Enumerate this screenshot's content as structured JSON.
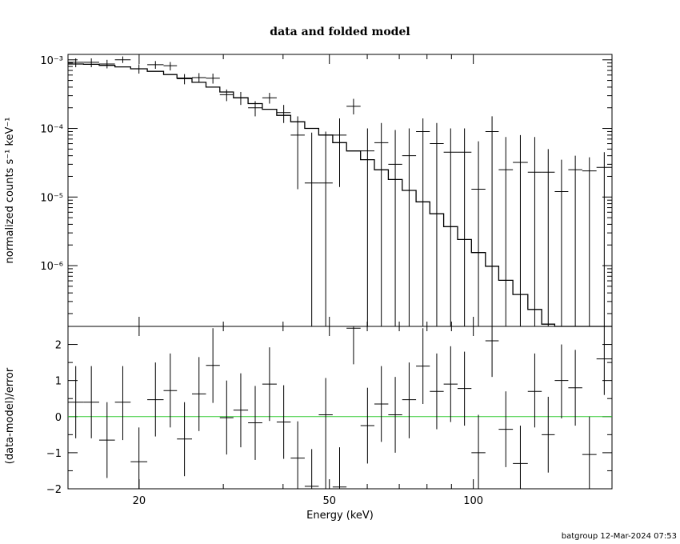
{
  "chart_data": [
    {
      "type": "line",
      "title": "data and folded model",
      "xlabel": "",
      "ylabel": "normalized counts s⁻¹ keV⁻¹",
      "xscale": "log",
      "yscale": "log",
      "xlim": [
        14.2,
        195
      ],
      "ylim": [
        1.3e-07,
        0.0012
      ],
      "ytick_labels": [
        "10⁻³",
        "10⁻⁴",
        "10⁻⁵",
        "10⁻⁶"
      ],
      "ytick_values": [
        0.001,
        0.0001,
        1e-05,
        1e-06
      ],
      "series": [
        {
          "style": "crosses",
          "points": [
            {
              "xlo": 14.2,
              "xhi": 15.3,
              "y": 0.00092,
              "ylo": 0.00078,
              "yhi": 0.00105
            },
            {
              "xlo": 15.3,
              "xhi": 16.5,
              "y": 0.00092,
              "ylo": 0.00078,
              "yhi": 0.00105
            },
            {
              "xlo": 16.5,
              "xhi": 17.8,
              "y": 0.00087,
              "ylo": 0.00075,
              "yhi": 0.001
            },
            {
              "xlo": 17.8,
              "xhi": 19.2,
              "y": 0.001,
              "ylo": 0.0009,
              "yhi": 0.00112
            },
            {
              "xlo": 19.2,
              "xhi": 20.8,
              "y": 0.00074,
              "ylo": 0.00063,
              "yhi": 0.00086
            },
            {
              "xlo": 20.8,
              "xhi": 22.5,
              "y": 0.00085,
              "ylo": 0.00074,
              "yhi": 0.00096
            },
            {
              "xlo": 22.5,
              "xhi": 24.0,
              "y": 0.00082,
              "ylo": 0.0007,
              "yhi": 0.00093
            },
            {
              "xlo": 24.0,
              "xhi": 25.8,
              "y": 0.00053,
              "ylo": 0.00044,
              "yhi": 0.00062
            },
            {
              "xlo": 25.8,
              "xhi": 27.6,
              "y": 0.00055,
              "ylo": 0.00047,
              "yhi": 0.00064
            },
            {
              "xlo": 27.6,
              "xhi": 29.5,
              "y": 0.00054,
              "ylo": 0.00045,
              "yhi": 0.00063
            },
            {
              "xlo": 29.5,
              "xhi": 31.5,
              "y": 0.00031,
              "ylo": 0.00025,
              "yhi": 0.00037
            },
            {
              "xlo": 31.5,
              "xhi": 33.8,
              "y": 0.00028,
              "ylo": 0.00022,
              "yhi": 0.00034
            },
            {
              "xlo": 33.8,
              "xhi": 36.2,
              "y": 0.0002,
              "ylo": 0.00015,
              "yhi": 0.00025
            },
            {
              "xlo": 36.2,
              "xhi": 38.8,
              "y": 0.00028,
              "ylo": 0.00023,
              "yhi": 0.00033
            },
            {
              "xlo": 38.8,
              "xhi": 41.5,
              "y": 0.00017,
              "ylo": 0.00012,
              "yhi": 0.00022
            },
            {
              "xlo": 41.5,
              "xhi": 44.4,
              "y": 8e-05,
              "ylo": 1.3e-05,
              "yhi": 0.00015
            },
            {
              "xlo": 44.4,
              "xhi": 47.5,
              "y": 1.6e-05,
              "ylo": 1.3e-07,
              "yhi": 8.7e-05
            },
            {
              "xlo": 47.5,
              "xhi": 50.8,
              "y": 1.6e-05,
              "ylo": 1.3e-07,
              "yhi": 9e-05
            },
            {
              "xlo": 50.8,
              "xhi": 54.3,
              "y": 8e-05,
              "ylo": 1.4e-05,
              "yhi": 0.00014
            },
            {
              "xlo": 54.3,
              "xhi": 58.1,
              "y": 0.00021,
              "ylo": 0.00016,
              "yhi": 0.00027
            },
            {
              "xlo": 58.1,
              "xhi": 62.1,
              "y": 4.7e-05,
              "ylo": 1.3e-07,
              "yhi": 0.0001
            },
            {
              "xlo": 62.1,
              "xhi": 66.4,
              "y": 6.2e-05,
              "ylo": 1.3e-07,
              "yhi": 0.00012
            },
            {
              "xlo": 66.4,
              "xhi": 71.0,
              "y": 3e-05,
              "ylo": 1.3e-07,
              "yhi": 9.5e-05
            },
            {
              "xlo": 71.0,
              "xhi": 75.9,
              "y": 4e-05,
              "ylo": 1.3e-07,
              "yhi": 0.0001
            },
            {
              "xlo": 75.9,
              "xhi": 81.1,
              "y": 9e-05,
              "ylo": 1.3e-07,
              "yhi": 0.00014
            },
            {
              "xlo": 81.1,
              "xhi": 86.7,
              "y": 6e-05,
              "ylo": 1.3e-07,
              "yhi": 0.00012
            },
            {
              "xlo": 86.7,
              "xhi": 92.7,
              "y": 4.5e-05,
              "ylo": 1.3e-07,
              "yhi": 0.0001
            },
            {
              "xlo": 92.7,
              "xhi": 99.1,
              "y": 4.5e-05,
              "ylo": 1.3e-07,
              "yhi": 0.0001
            },
            {
              "xlo": 99.1,
              "xhi": 106,
              "y": 1.3e-05,
              "ylo": 1.3e-07,
              "yhi": 6.5e-05
            },
            {
              "xlo": 106,
              "xhi": 113,
              "y": 9e-05,
              "ylo": 1.3e-07,
              "yhi": 0.00015
            },
            {
              "xlo": 113,
              "xhi": 121,
              "y": 2.5e-05,
              "ylo": 1.3e-07,
              "yhi": 7.5e-05
            },
            {
              "xlo": 121,
              "xhi": 130,
              "y": 3.2e-05,
              "ylo": 1.3e-07,
              "yhi": 8e-05
            },
            {
              "xlo": 130,
              "xhi": 139,
              "y": 2.3e-05,
              "ylo": 1.3e-07,
              "yhi": 7.5e-05
            },
            {
              "xlo": 139,
              "xhi": 148,
              "y": 2.3e-05,
              "ylo": 1.3e-07,
              "yhi": 5e-05
            },
            {
              "xlo": 148,
              "xhi": 158,
              "y": 1.2e-05,
              "ylo": 1.3e-07,
              "yhi": 3.5e-05
            },
            {
              "xlo": 158,
              "xhi": 169,
              "y": 2.5e-05,
              "ylo": 1.3e-07,
              "yhi": 4e-05
            },
            {
              "xlo": 169,
              "xhi": 181,
              "y": 2.4e-05,
              "ylo": 1.3e-07,
              "yhi": 3.8e-05
            },
            {
              "xlo": 181,
              "xhi": 195,
              "y": 2.7e-05,
              "ylo": 1.3e-07,
              "yhi": 4.5e-05
            }
          ]
        },
        {
          "style": "step",
          "edges": [
            14.2,
            15.3,
            16.5,
            17.8,
            19.2,
            20.8,
            22.5,
            24.0,
            25.8,
            27.6,
            29.5,
            31.5,
            33.8,
            36.2,
            38.8,
            41.5,
            44.4,
            47.5,
            50.8,
            54.3,
            58.1,
            62.1,
            66.4,
            71.0,
            75.9,
            81.1,
            86.7,
            92.7,
            99.1,
            106,
            113,
            121,
            130,
            139,
            148,
            158,
            169,
            181,
            195
          ],
          "values": [
            0.00087,
            0.00086,
            0.00083,
            0.00079,
            0.00074,
            0.00068,
            0.00061,
            0.00054,
            0.00047,
            0.0004,
            0.00034,
            0.00028,
            0.00023,
            0.00019,
            0.000155,
            0.000125,
            0.0001,
            8e-05,
            6.2e-05,
            4.7e-05,
            3.5e-05,
            2.5e-05,
            1.8e-05,
            1.25e-05,
            8.5e-06,
            5.7e-06,
            3.7e-06,
            2.4e-06,
            1.55e-06,
            9.8e-07,
            6.1e-07,
            3.8e-07,
            2.3e-07,
            1.4e-07,
            1.3e-07,
            1.3e-07,
            1.3e-07,
            1.3e-07
          ]
        }
      ]
    },
    {
      "type": "scatter",
      "title": "",
      "xlabel": "Energy (keV)",
      "ylabel": "(data-model)/error",
      "xscale": "log",
      "xlim": [
        14.2,
        195
      ],
      "ylim": [
        -2,
        2.5
      ],
      "xtick_labels": [
        "20",
        "50",
        "100"
      ],
      "xtick_values": [
        20,
        50,
        100
      ],
      "ytick_labels": [
        "2",
        "1",
        "0",
        "−1",
        "−2"
      ],
      "ytick_values": [
        2,
        1,
        0,
        -1,
        -2
      ],
      "reference_line": {
        "y": 0,
        "color": "#33cc33"
      },
      "series": [
        {
          "style": "crosses",
          "points": [
            {
              "xlo": 14.2,
              "xhi": 15.3,
              "y": 0.4,
              "ylo": -0.6,
              "yhi": 1.4
            },
            {
              "xlo": 15.3,
              "xhi": 16.5,
              "y": 0.4,
              "ylo": -0.6,
              "yhi": 1.4
            },
            {
              "xlo": 16.5,
              "xhi": 17.8,
              "y": -0.65,
              "ylo": -1.7,
              "yhi": 0.4
            },
            {
              "xlo": 17.8,
              "xhi": 19.2,
              "y": 0.4,
              "ylo": -0.65,
              "yhi": 1.4
            },
            {
              "xlo": 19.2,
              "xhi": 20.8,
              "y": -1.25,
              "ylo": -2.0,
              "yhi": -0.3
            },
            {
              "xlo": 20.8,
              "xhi": 22.5,
              "y": 0.47,
              "ylo": -0.55,
              "yhi": 1.5
            },
            {
              "xlo": 22.5,
              "xhi": 24.0,
              "y": 0.72,
              "ylo": -0.3,
              "yhi": 1.75
            },
            {
              "xlo": 24.0,
              "xhi": 25.8,
              "y": -0.62,
              "ylo": -1.65,
              "yhi": 0.4
            },
            {
              "xlo": 25.8,
              "xhi": 27.6,
              "y": 0.63,
              "ylo": -0.4,
              "yhi": 1.65
            },
            {
              "xlo": 27.6,
              "xhi": 29.5,
              "y": 1.42,
              "ylo": 0.38,
              "yhi": 2.45
            },
            {
              "xlo": 29.5,
              "xhi": 31.5,
              "y": -0.03,
              "ylo": -1.05,
              "yhi": 1.0
            },
            {
              "xlo": 31.5,
              "xhi": 33.8,
              "y": 0.18,
              "ylo": -0.85,
              "yhi": 1.2
            },
            {
              "xlo": 33.8,
              "xhi": 36.2,
              "y": -0.17,
              "ylo": -1.2,
              "yhi": 0.85
            },
            {
              "xlo": 36.2,
              "xhi": 38.8,
              "y": 0.9,
              "ylo": -0.12,
              "yhi": 1.92
            },
            {
              "xlo": 38.8,
              "xhi": 41.5,
              "y": -0.15,
              "ylo": -1.17,
              "yhi": 0.87
            },
            {
              "xlo": 41.5,
              "xhi": 44.4,
              "y": -1.15,
              "ylo": -2.0,
              "yhi": -0.13
            },
            {
              "xlo": 44.4,
              "xhi": 47.5,
              "y": -1.93,
              "ylo": -2.0,
              "yhi": -0.9
            },
            {
              "xlo": 47.5,
              "xhi": 50.8,
              "y": 0.05,
              "ylo": -2.0,
              "yhi": 1.07
            },
            {
              "xlo": 50.8,
              "xhi": 54.3,
              "y": -1.95,
              "ylo": -2.0,
              "yhi": -0.85
            },
            {
              "xlo": 54.3,
              "xhi": 58.1,
              "y": 2.45,
              "ylo": 1.45,
              "yhi": 2.5
            },
            {
              "xlo": 58.1,
              "xhi": 62.1,
              "y": -0.25,
              "ylo": -1.3,
              "yhi": 0.8
            },
            {
              "xlo": 62.1,
              "xhi": 66.4,
              "y": 0.35,
              "ylo": -0.7,
              "yhi": 1.4
            },
            {
              "xlo": 66.4,
              "xhi": 71.0,
              "y": 0.05,
              "ylo": -1.0,
              "yhi": 1.1
            },
            {
              "xlo": 71.0,
              "xhi": 75.9,
              "y": 0.47,
              "ylo": -0.6,
              "yhi": 1.5
            },
            {
              "xlo": 75.9,
              "xhi": 81.1,
              "y": 1.4,
              "ylo": 0.35,
              "yhi": 2.45
            },
            {
              "xlo": 81.1,
              "xhi": 86.7,
              "y": 0.7,
              "ylo": -0.35,
              "yhi": 1.75
            },
            {
              "xlo": 86.7,
              "xhi": 92.7,
              "y": 0.9,
              "ylo": -0.15,
              "yhi": 1.95
            },
            {
              "xlo": 92.7,
              "xhi": 99.1,
              "y": 0.78,
              "ylo": -0.25,
              "yhi": 1.8
            },
            {
              "xlo": 99.1,
              "xhi": 106,
              "y": -1.0,
              "ylo": -2.0,
              "yhi": 0.05
            },
            {
              "xlo": 106,
              "xhi": 113,
              "y": 2.1,
              "ylo": 1.1,
              "yhi": 2.5
            },
            {
              "xlo": 113,
              "xhi": 121,
              "y": -0.35,
              "ylo": -1.4,
              "yhi": 0.7
            },
            {
              "xlo": 121,
              "xhi": 130,
              "y": -1.3,
              "ylo": -2.0,
              "yhi": -0.25
            },
            {
              "xlo": 130,
              "xhi": 139,
              "y": 0.7,
              "ylo": -0.3,
              "yhi": 1.75
            },
            {
              "xlo": 139,
              "xhi": 148,
              "y": -0.5,
              "ylo": -1.55,
              "yhi": 0.55
            },
            {
              "xlo": 148,
              "xhi": 158,
              "y": 1.0,
              "ylo": -0.05,
              "yhi": 2.0
            },
            {
              "xlo": 158,
              "xhi": 169,
              "y": 0.8,
              "ylo": -0.25,
              "yhi": 1.85
            },
            {
              "xlo": 169,
              "xhi": 181,
              "y": -1.05,
              "ylo": -2.0,
              "yhi": 0.0
            },
            {
              "xlo": 181,
              "xhi": 195,
              "y": 1.6,
              "ylo": 0.6,
              "yhi": 2.5
            }
          ]
        }
      ]
    }
  ],
  "timestamp": "batgroup 12-Mar-2024 07:53"
}
